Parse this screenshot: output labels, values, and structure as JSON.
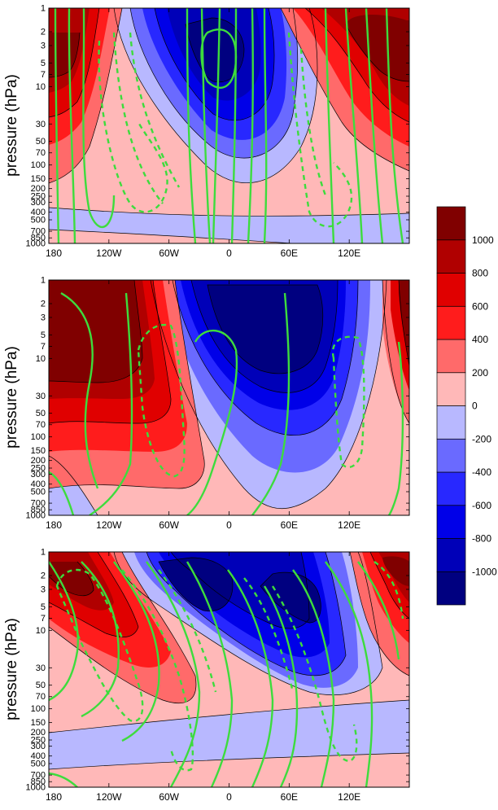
{
  "chart_data": [
    {
      "type": "heatmap",
      "panel": "top",
      "ylabel": "pressure (hPa)",
      "y_scale": "log",
      "ylim": [
        1000,
        1
      ],
      "x_tick_labels": [
        "180",
        "120W",
        "60W",
        "0",
        "60E",
        "120E"
      ],
      "y_tick_labels": [
        "1",
        "2",
        "3",
        "5",
        "7",
        "10",
        "30",
        "50",
        "70",
        "100",
        "150",
        "200",
        "250",
        "300",
        "400",
        "500",
        "700",
        "850",
        "1000"
      ],
      "xlim": [
        -180,
        180
      ],
      "fill_extrema": [
        {
          "lon": -175,
          "pressure": 5,
          "value": 1000
        },
        {
          "lon": -20,
          "pressure": 5,
          "value": -1000
        },
        {
          "lon": 140,
          "pressure": 5,
          "value": 1000
        }
      ],
      "green_contours": {
        "solid": "positive",
        "dashed": "negative"
      }
    },
    {
      "type": "heatmap",
      "panel": "middle",
      "ylabel": "pressure (hPa)",
      "y_scale": "log",
      "ylim": [
        1000,
        1
      ],
      "x_tick_labels": [
        "180",
        "120W",
        "60W",
        "0",
        "60E",
        "120E"
      ],
      "y_tick_labels": [
        "1",
        "2",
        "3",
        "5",
        "7",
        "10",
        "30",
        "50",
        "70",
        "100",
        "150",
        "200",
        "250",
        "300",
        "400",
        "500",
        "700",
        "850",
        "1000"
      ],
      "xlim": [
        -180,
        180
      ],
      "fill_extrema": [
        {
          "lon": -140,
          "pressure": 7,
          "value": 1000
        },
        {
          "lon": 10,
          "pressure": 7,
          "value": -1000
        },
        {
          "lon": 175,
          "pressure": 10,
          "value": 1000
        }
      ],
      "green_contours": {
        "solid": "positive",
        "dashed": "negative"
      }
    },
    {
      "type": "heatmap",
      "panel": "bottom",
      "ylabel": "pressure (hPa)",
      "y_scale": "log",
      "ylim": [
        1000,
        1
      ],
      "x_tick_labels": [
        "180",
        "120W",
        "60W",
        "0",
        "60E",
        "120E"
      ],
      "y_tick_labels": [
        "1",
        "2",
        "3",
        "5",
        "7",
        "10",
        "30",
        "50",
        "70",
        "100",
        "150",
        "200",
        "250",
        "300",
        "400",
        "500",
        "700",
        "850",
        "1000"
      ],
      "xlim": [
        -180,
        180
      ],
      "fill_extrema": [
        {
          "lon": -150,
          "pressure": 5,
          "value": 1000
        },
        {
          "lon": -60,
          "pressure": 3,
          "value": -1000
        },
        {
          "lon": 35,
          "pressure": 10,
          "value": -1000
        },
        {
          "lon": 145,
          "pressure": 3,
          "value": 1000
        }
      ],
      "green_contours": {
        "solid": "positive",
        "dashed": "negative"
      }
    }
  ],
  "colorbar": {
    "levels": [
      -1200,
      -1000,
      -800,
      -600,
      -400,
      -200,
      0,
      200,
      400,
      600,
      800,
      1000,
      1200
    ],
    "tick_labels": [
      "-1000",
      "-800",
      "-600",
      "-400",
      "-200",
      "0",
      "200",
      "400",
      "600",
      "800",
      "1000"
    ],
    "colors": [
      "#000080",
      "#0000b8",
      "#0000e8",
      "#2828ff",
      "#6a6aff",
      "#b8b8ff",
      "#ffb8b8",
      "#ff6a6a",
      "#ff1c1c",
      "#e00000",
      "#b00000",
      "#800000"
    ]
  },
  "contour_color": "#3ddc3d"
}
